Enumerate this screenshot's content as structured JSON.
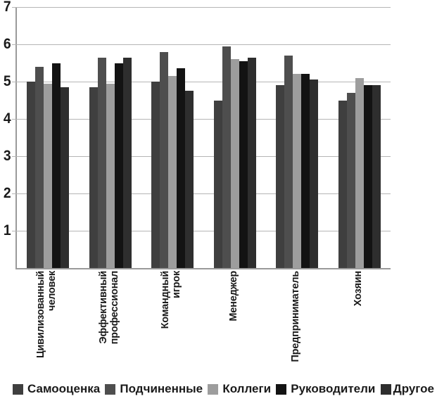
{
  "chart_data": {
    "type": "bar",
    "title": "",
    "xlabel": "",
    "ylabel": "",
    "ylim": [
      0,
      7
    ],
    "yticks": [
      1,
      2,
      3,
      4,
      5,
      6,
      7
    ],
    "grid": true,
    "legend_position": "bottom",
    "categories": [
      "Цивилизованный человек",
      "Эффективный профессионал",
      "Командный игрок",
      "Менеджер",
      "Предприниматель",
      "Хозяин"
    ],
    "category_label_lines": [
      [
        "Цивилизованный",
        "человек"
      ],
      [
        "Эффективный",
        "профессионал"
      ],
      [
        "Командный",
        "игрок"
      ],
      [
        "Менеджер"
      ],
      [
        "Предприниматель"
      ],
      [
        "Хозяин"
      ]
    ],
    "series": [
      {
        "name": "Самооценка",
        "color": "#3f3f3f",
        "textured": true,
        "values": [
          5.0,
          4.85,
          5.0,
          4.5,
          4.9,
          4.5
        ]
      },
      {
        "name": "Подчиненные",
        "color": "#4e4e4e",
        "textured": false,
        "values": [
          5.4,
          5.65,
          5.8,
          5.95,
          5.7,
          4.7
        ]
      },
      {
        "name": "Коллеги",
        "color": "#9d9d9d",
        "textured": false,
        "values": [
          4.95,
          4.95,
          5.15,
          5.6,
          5.2,
          5.1
        ]
      },
      {
        "name": "Руководители",
        "color": "#131313",
        "textured": false,
        "values": [
          5.5,
          5.5,
          5.35,
          5.55,
          5.2,
          4.9
        ]
      },
      {
        "name": "Другое",
        "color": "#2e2e2e",
        "textured": false,
        "values": [
          4.85,
          5.65,
          4.75,
          5.65,
          5.05,
          4.9
        ]
      }
    ],
    "colors": {
      "gridline": "#b5b5b5",
      "axis": "#9a9a9a",
      "text": "#1a1a1a"
    }
  }
}
